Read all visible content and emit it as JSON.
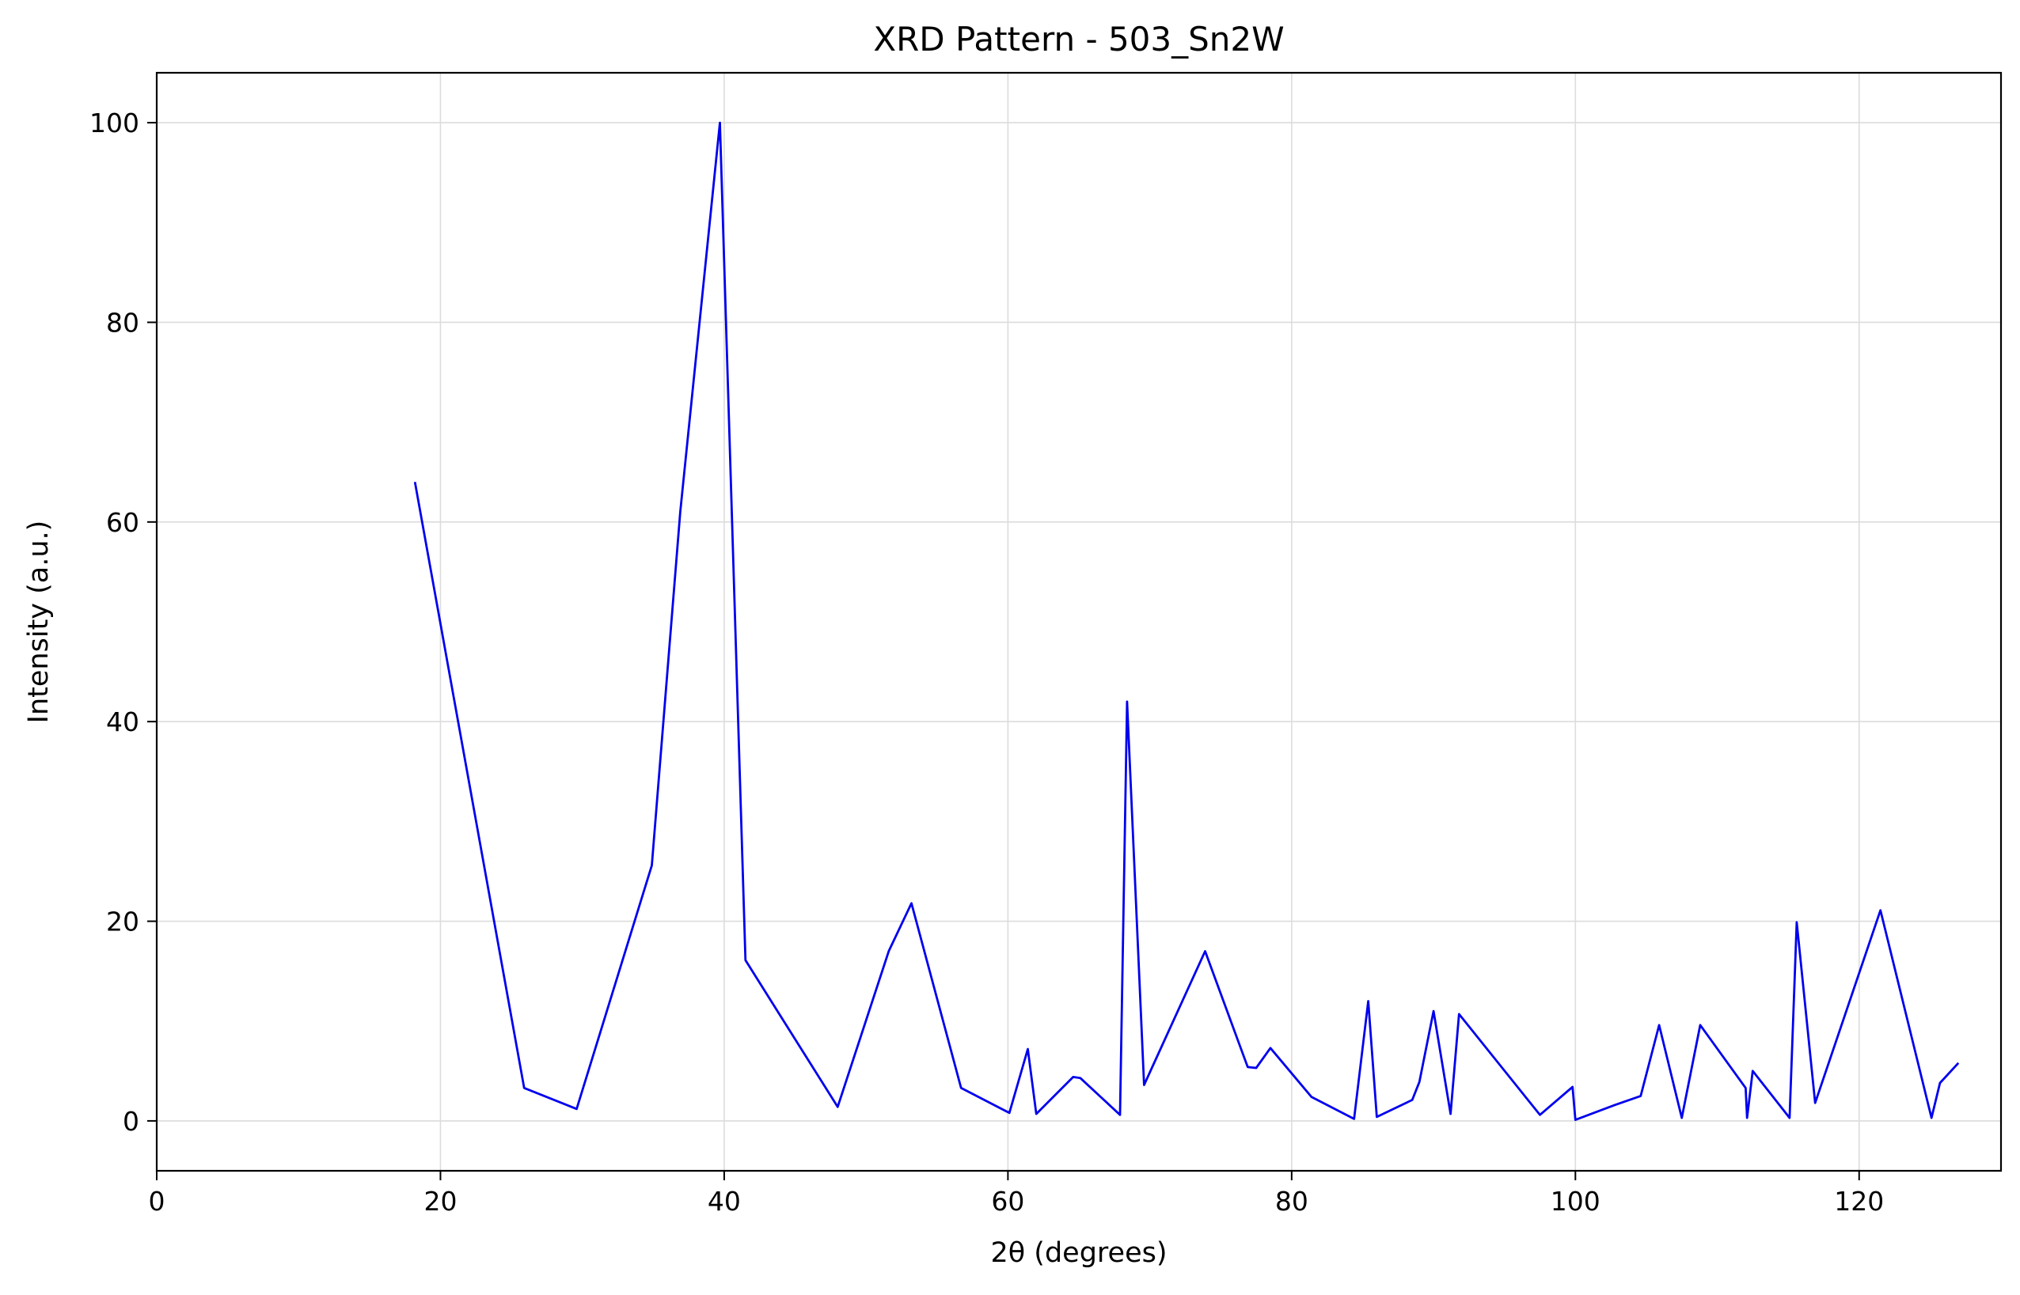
{
  "chart_data": {
    "type": "line",
    "title": "XRD Pattern - 503_Sn2W",
    "xlabel": "2θ (degrees)",
    "ylabel": "Intensity (a.u.)",
    "xlim": [
      0,
      130
    ],
    "ylim": [
      -5,
      105
    ],
    "xticks": [
      0,
      20,
      40,
      60,
      80,
      100,
      120
    ],
    "yticks": [
      0,
      20,
      40,
      60,
      80,
      100
    ],
    "grid": true,
    "line_color": "#0000ee",
    "series": [
      {
        "x": [
          18.2,
          25.9,
          29.6,
          34.9,
          36.9,
          39.7,
          41.5,
          48.0,
          51.6,
          53.2,
          56.7,
          60.1,
          61.4,
          62.0,
          64.6,
          65.1,
          67.9,
          68.4,
          69.6,
          73.9,
          76.9,
          77.5,
          78.5,
          81.4,
          84.4,
          85.4,
          86.0,
          88.5,
          89.0,
          90.0,
          91.2,
          91.8,
          97.5,
          99.8,
          100.0,
          102.8,
          104.6,
          105.9,
          107.5,
          108.8,
          112.0,
          112.1,
          112.5,
          115.1,
          115.6,
          116.9,
          121.5,
          125.1,
          125.7,
          127.0
        ],
        "y": [
          64,
          3.3,
          1.2,
          25.6,
          61,
          100,
          16.1,
          1.4,
          17,
          21.8,
          3.3,
          0.8,
          7.2,
          0.7,
          4.4,
          4.3,
          0.6,
          42,
          3.6,
          17,
          5.4,
          5.3,
          7.3,
          2.4,
          0.2,
          12,
          0.4,
          2.1,
          3.9,
          11,
          0.7,
          10.7,
          0.6,
          3.4,
          0.1,
          1.6,
          2.5,
          9.6,
          0.3,
          9.6,
          3.3,
          0.3,
          5.0,
          0.3,
          19.9,
          1.8,
          21.1,
          0.3,
          3.8,
          5.8
        ]
      }
    ]
  }
}
